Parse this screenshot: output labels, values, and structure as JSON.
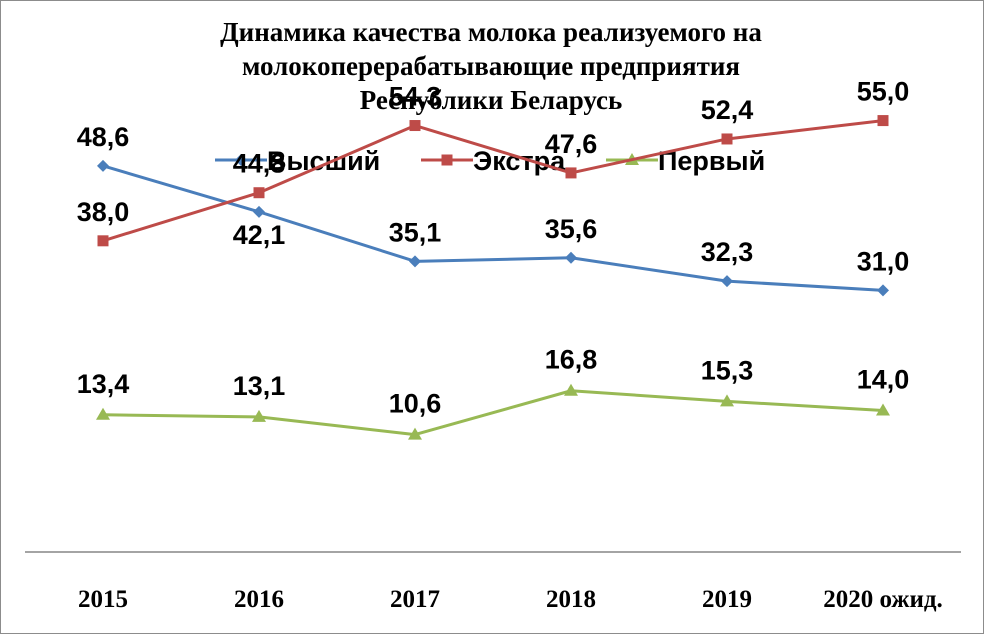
{
  "chart_data": {
    "type": "line",
    "title": "Динамика качества молока реализуемого на\nмолокоперерабатывающие предприятия\nРеспублики Беларусь",
    "categories": [
      "2015",
      "2016",
      "2017",
      "2018",
      "2019",
      "2020 ожид."
    ],
    "series": [
      {
        "name": "Высший",
        "color": "#4a7ebb",
        "marker": "diamond",
        "values": [
          48.6,
          42.1,
          35.1,
          35.6,
          32.3,
          31.0
        ],
        "labels": [
          "48,6",
          "42,1",
          "35,1",
          "35,6",
          "32,3",
          "31,0"
        ]
      },
      {
        "name": "Экстра",
        "color": "#be4b48",
        "marker": "square",
        "values": [
          38.0,
          44.8,
          54.3,
          47.6,
          52.4,
          55.0
        ],
        "labels": [
          "38,0",
          "44,8",
          "54,3",
          "47,6",
          "52,4",
          "55,0"
        ]
      },
      {
        "name": "Первый",
        "color": "#98b954",
        "marker": "triangle",
        "values": [
          13.4,
          13.1,
          10.6,
          16.8,
          15.3,
          14.0
        ],
        "labels": [
          "13,4",
          "13,1",
          "10,6",
          "16,8",
          "15,3",
          "14,0"
        ]
      }
    ],
    "ylim": [
      -6,
      63
    ],
    "grid": false,
    "legend": "top-center",
    "xlabel": "",
    "ylabel": ""
  }
}
